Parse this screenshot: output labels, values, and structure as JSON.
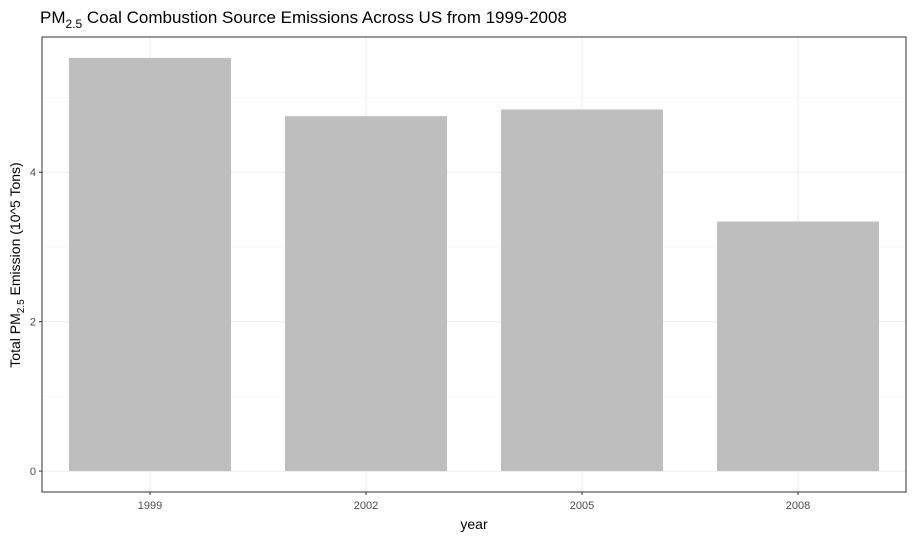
{
  "chart_data": {
    "type": "bar",
    "title": {
      "prefix": "PM",
      "subscript": "2.5",
      "suffix": " Coal Combustion Source Emissions Across US from 1999-2008"
    },
    "xlabel": "year",
    "ylabel": {
      "prefix": "Total PM",
      "subscript": "2.5",
      "suffix": " Emission (10^5 Tons)"
    },
    "categories": [
      "1999",
      "2002",
      "2005",
      "2008"
    ],
    "values": [
      5.53,
      4.75,
      4.84,
      3.34
    ],
    "ylim": [
      -0.28,
      5.81
    ],
    "yticks": [
      0,
      2,
      4
    ],
    "yticks_labels": [
      "0",
      "2",
      "4"
    ],
    "minor_yticks": [
      1,
      3,
      5
    ],
    "grid": true,
    "legend": "none",
    "colors": {
      "bar": "#bebebe",
      "grid_major": "#ebebeb",
      "grid_minor": "#f5f5f5",
      "panel_border": "#333333",
      "tick": "#333333"
    }
  }
}
